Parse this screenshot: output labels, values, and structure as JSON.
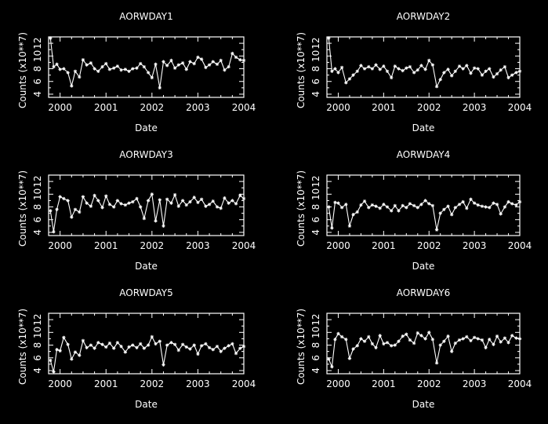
{
  "chart_data": [
    {
      "type": "line",
      "title": "AORWDAY1",
      "xlabel": "Date",
      "ylabel": "Counts (x10**7)",
      "xlim": [
        1999.75,
        2004.0
      ],
      "ylim": [
        3.5,
        13
      ],
      "x_ticks": [
        "2000",
        "2001",
        "2002",
        "2003",
        "2004"
      ],
      "y_ticks": [
        "4",
        "6",
        "8",
        "10",
        "12"
      ],
      "series": [
        {
          "x": [
            1999.79,
            1999.86,
            1999.93,
            2000.0,
            2000.08,
            2000.17,
            2000.25,
            2000.33,
            2000.42,
            2000.5,
            2000.58,
            2000.67,
            2000.75,
            2000.83,
            2000.92,
            2001.0,
            2001.08,
            2001.17,
            2001.25,
            2001.33,
            2001.42,
            2001.5,
            2001.58,
            2001.67,
            2001.75,
            2001.83,
            2001.92,
            2002.0,
            2002.08,
            2002.17,
            2002.25,
            2002.33,
            2002.42,
            2002.5,
            2002.58,
            2002.67,
            2002.75,
            2002.83,
            2002.92,
            2003.0,
            2003.08,
            2003.17,
            2003.25,
            2003.33,
            2003.42,
            2003.5,
            2003.58,
            2003.67,
            2003.75,
            2003.83,
            2003.92,
            2004.0
          ],
          "y": [
            12.8,
            8.3,
            8.7,
            7.9,
            8.0,
            7.4,
            5.3,
            7.6,
            6.7,
            9.4,
            8.6,
            8.9,
            8.0,
            7.6,
            8.3,
            8.8,
            7.9,
            8.1,
            8.4,
            7.8,
            7.9,
            7.6,
            8.0,
            8.1,
            8.8,
            8.3,
            7.4,
            6.6,
            8.7,
            5.0,
            9.1,
            8.5,
            9.3,
            8.1,
            8.6,
            8.9,
            7.9,
            9.1,
            8.8,
            9.8,
            9.5,
            8.2,
            8.6,
            9.1,
            8.7,
            9.3,
            7.8,
            8.3,
            10.4,
            9.8,
            9.4,
            9.3
          ]
        }
      ]
    },
    {
      "type": "line",
      "title": "AORWDAY2",
      "xlabel": "Date",
      "ylabel": "Counts (x10**7)",
      "xlim": [
        1999.75,
        2004.0
      ],
      "ylim": [
        3.5,
        13
      ],
      "x_ticks": [
        "2000",
        "2001",
        "2002",
        "2003",
        "2004"
      ],
      "y_ticks": [
        "4",
        "6",
        "8",
        "10",
        "12"
      ],
      "series": [
        {
          "x": [
            1999.79,
            1999.86,
            1999.93,
            2000.0,
            2000.08,
            2000.17,
            2000.25,
            2000.33,
            2000.42,
            2000.5,
            2000.58,
            2000.67,
            2000.75,
            2000.83,
            2000.92,
            2001.0,
            2001.08,
            2001.17,
            2001.25,
            2001.33,
            2001.42,
            2001.5,
            2001.58,
            2001.67,
            2001.75,
            2001.83,
            2001.92,
            2002.0,
            2002.08,
            2002.17,
            2002.25,
            2002.33,
            2002.42,
            2002.5,
            2002.58,
            2002.67,
            2002.75,
            2002.83,
            2002.92,
            2003.0,
            2003.08,
            2003.17,
            2003.25,
            2003.33,
            2003.42,
            2003.5,
            2003.58,
            2003.67,
            2003.75,
            2003.83,
            2003.92,
            2004.0
          ],
          "y": [
            12.8,
            7.6,
            8.0,
            7.4,
            8.2,
            5.8,
            6.4,
            7.0,
            7.6,
            8.5,
            8.0,
            8.3,
            8.0,
            8.6,
            7.9,
            8.4,
            7.6,
            6.6,
            8.4,
            8.0,
            7.7,
            8.1,
            8.3,
            7.4,
            7.8,
            8.5,
            7.9,
            9.3,
            8.6,
            5.2,
            6.3,
            7.4,
            7.9,
            6.9,
            7.6,
            8.4,
            8.0,
            8.5,
            7.3,
            8.1,
            8.0,
            7.0,
            7.6,
            8.0,
            6.7,
            7.2,
            7.8,
            8.3,
            6.6,
            7.0,
            7.4,
            7.6
          ]
        }
      ]
    },
    {
      "type": "line",
      "title": "AORWDAY3",
      "xlabel": "Date",
      "ylabel": "Counts (x10**7)",
      "xlim": [
        1999.75,
        2004.0
      ],
      "ylim": [
        3.5,
        13
      ],
      "x_ticks": [
        "2000",
        "2001",
        "2002",
        "2003",
        "2004"
      ],
      "y_ticks": [
        "4",
        "6",
        "8",
        "10",
        "12"
      ],
      "series": [
        {
          "x": [
            1999.79,
            1999.86,
            1999.93,
            2000.0,
            2000.08,
            2000.17,
            2000.25,
            2000.33,
            2000.42,
            2000.5,
            2000.58,
            2000.67,
            2000.75,
            2000.83,
            2000.92,
            2001.0,
            2001.08,
            2001.17,
            2001.25,
            2001.33,
            2001.42,
            2001.5,
            2001.58,
            2001.67,
            2001.75,
            2001.83,
            2001.92,
            2002.0,
            2002.08,
            2002.17,
            2002.25,
            2002.33,
            2002.42,
            2002.5,
            2002.58,
            2002.67,
            2002.75,
            2002.83,
            2002.92,
            2003.0,
            2003.08,
            2003.17,
            2003.25,
            2003.33,
            2003.42,
            2003.5,
            2003.58,
            2003.67,
            2003.75,
            2003.83,
            2003.92,
            2004.0
          ],
          "y": [
            7.4,
            4.1,
            7.6,
            9.6,
            9.3,
            9.0,
            6.4,
            7.6,
            7.2,
            9.6,
            8.6,
            8.1,
            9.8,
            9.0,
            7.9,
            9.7,
            8.4,
            8.0,
            9.0,
            8.5,
            8.3,
            8.6,
            8.8,
            9.3,
            8.0,
            6.2,
            9.0,
            10.0,
            5.8,
            9.1,
            5.0,
            9.2,
            8.6,
            9.9,
            8.1,
            9.0,
            8.3,
            8.8,
            9.5,
            8.7,
            9.2,
            8.1,
            8.4,
            8.9,
            8.0,
            7.8,
            9.4,
            8.6,
            9.0,
            8.5,
            9.8,
            9.3
          ]
        }
      ]
    },
    {
      "type": "line",
      "title": "AORWDAY4",
      "xlabel": "Date",
      "ylabel": "Counts (x10**7)",
      "xlim": [
        1999.75,
        2004.0
      ],
      "ylim": [
        3.5,
        13
      ],
      "x_ticks": [
        "2000",
        "2001",
        "2002",
        "2003",
        "2004"
      ],
      "y_ticks": [
        "4",
        "6",
        "8",
        "10",
        "12"
      ],
      "series": [
        {
          "x": [
            1999.79,
            1999.86,
            1999.93,
            2000.0,
            2000.08,
            2000.17,
            2000.25,
            2000.33,
            2000.42,
            2000.5,
            2000.58,
            2000.67,
            2000.75,
            2000.83,
            2000.92,
            2001.0,
            2001.08,
            2001.17,
            2001.25,
            2001.33,
            2001.42,
            2001.5,
            2001.58,
            2001.67,
            2001.75,
            2001.83,
            2001.92,
            2002.0,
            2002.08,
            2002.17,
            2002.25,
            2002.33,
            2002.42,
            2002.5,
            2002.58,
            2002.67,
            2002.75,
            2002.83,
            2002.92,
            2003.0,
            2003.08,
            2003.17,
            2003.25,
            2003.33,
            2003.42,
            2003.5,
            2003.58,
            2003.67,
            2003.75,
            2003.83,
            2003.92,
            2004.0
          ],
          "y": [
            8.0,
            4.7,
            8.7,
            8.6,
            7.9,
            8.4,
            5.0,
            6.8,
            7.2,
            8.3,
            8.9,
            7.9,
            8.3,
            8.1,
            7.8,
            8.4,
            8.0,
            7.4,
            8.2,
            7.4,
            8.2,
            7.9,
            8.5,
            8.2,
            7.9,
            8.4,
            9.0,
            8.5,
            8.2,
            4.4,
            7.0,
            7.6,
            8.1,
            6.8,
            7.9,
            8.4,
            8.8,
            7.8,
            9.2,
            8.6,
            8.3,
            8.1,
            8.0,
            7.9,
            8.6,
            8.4,
            6.9,
            8.0,
            8.8,
            8.5,
            8.3,
            8.8
          ]
        }
      ]
    },
    {
      "type": "line",
      "title": "AORWDAY5",
      "xlabel": "Date",
      "ylabel": "Counts (x10**7)",
      "xlim": [
        1999.75,
        2004.0
      ],
      "ylim": [
        3.5,
        13
      ],
      "x_ticks": [
        "2000",
        "2001",
        "2002",
        "2003",
        "2004"
      ],
      "y_ticks": [
        "4",
        "6",
        "8",
        "10",
        "12"
      ],
      "series": [
        {
          "x": [
            1999.79,
            1999.86,
            1999.93,
            2000.0,
            2000.08,
            2000.17,
            2000.25,
            2000.33,
            2000.42,
            2000.5,
            2000.58,
            2000.67,
            2000.75,
            2000.83,
            2000.92,
            2001.0,
            2001.08,
            2001.17,
            2001.25,
            2001.33,
            2001.42,
            2001.5,
            2001.58,
            2001.67,
            2001.75,
            2001.83,
            2001.92,
            2002.0,
            2002.08,
            2002.17,
            2002.25,
            2002.33,
            2002.42,
            2002.5,
            2002.58,
            2002.67,
            2002.75,
            2002.83,
            2002.92,
            2003.0,
            2003.08,
            2003.17,
            2003.25,
            2003.33,
            2003.42,
            2003.5,
            2003.58,
            2003.67,
            2003.75,
            2003.83,
            2003.92,
            2004.0
          ],
          "y": [
            5.6,
            3.8,
            7.3,
            7.1,
            9.2,
            8.1,
            5.8,
            6.9,
            6.4,
            8.7,
            7.6,
            8.0,
            7.5,
            8.4,
            8.1,
            7.7,
            8.3,
            7.5,
            8.4,
            7.8,
            6.9,
            7.7,
            8.0,
            7.6,
            8.2,
            7.5,
            8.0,
            9.3,
            8.2,
            8.6,
            4.9,
            8.0,
            8.4,
            8.1,
            7.2,
            8.1,
            7.7,
            7.4,
            8.0,
            6.6,
            7.9,
            8.2,
            7.6,
            7.3,
            7.8,
            7.0,
            7.5,
            7.9,
            8.2,
            6.7,
            7.5,
            7.8
          ]
        }
      ]
    },
    {
      "type": "line",
      "title": "AORWDAY6",
      "xlabel": "Date",
      "ylabel": "Counts (x10**7)",
      "xlim": [
        1999.75,
        2004.0
      ],
      "ylim": [
        3.5,
        13
      ],
      "x_ticks": [
        "2000",
        "2001",
        "2002",
        "2003",
        "2004"
      ],
      "y_ticks": [
        "4",
        "6",
        "8",
        "10",
        "12"
      ],
      "series": [
        {
          "x": [
            1999.79,
            1999.86,
            1999.93,
            2000.0,
            2000.08,
            2000.17,
            2000.25,
            2000.33,
            2000.42,
            2000.5,
            2000.58,
            2000.67,
            2000.75,
            2000.83,
            2000.92,
            2001.0,
            2001.08,
            2001.17,
            2001.25,
            2001.33,
            2001.42,
            2001.5,
            2001.58,
            2001.67,
            2001.75,
            2001.83,
            2001.92,
            2002.0,
            2002.08,
            2002.17,
            2002.25,
            2002.33,
            2002.42,
            2002.5,
            2002.58,
            2002.67,
            2002.75,
            2002.83,
            2002.92,
            2003.0,
            2003.08,
            2003.17,
            2003.25,
            2003.33,
            2003.42,
            2003.5,
            2003.58,
            2003.67,
            2003.75,
            2003.83,
            2003.92,
            2004.0
          ],
          "y": [
            5.8,
            4.6,
            8.9,
            9.8,
            9.3,
            8.9,
            5.9,
            7.4,
            7.9,
            9.0,
            8.6,
            9.3,
            8.2,
            7.6,
            9.5,
            8.2,
            8.4,
            7.9,
            8.0,
            8.6,
            9.4,
            9.7,
            8.8,
            8.3,
            9.9,
            9.5,
            9.0,
            10.0,
            8.9,
            5.2,
            8.0,
            8.6,
            9.4,
            7.0,
            8.3,
            8.8,
            9.0,
            9.3,
            8.7,
            9.2,
            9.0,
            8.8,
            7.6,
            8.9,
            8.1,
            9.4,
            8.5,
            9.1,
            8.4,
            9.5,
            9.1,
            9.0
          ]
        }
      ]
    }
  ]
}
